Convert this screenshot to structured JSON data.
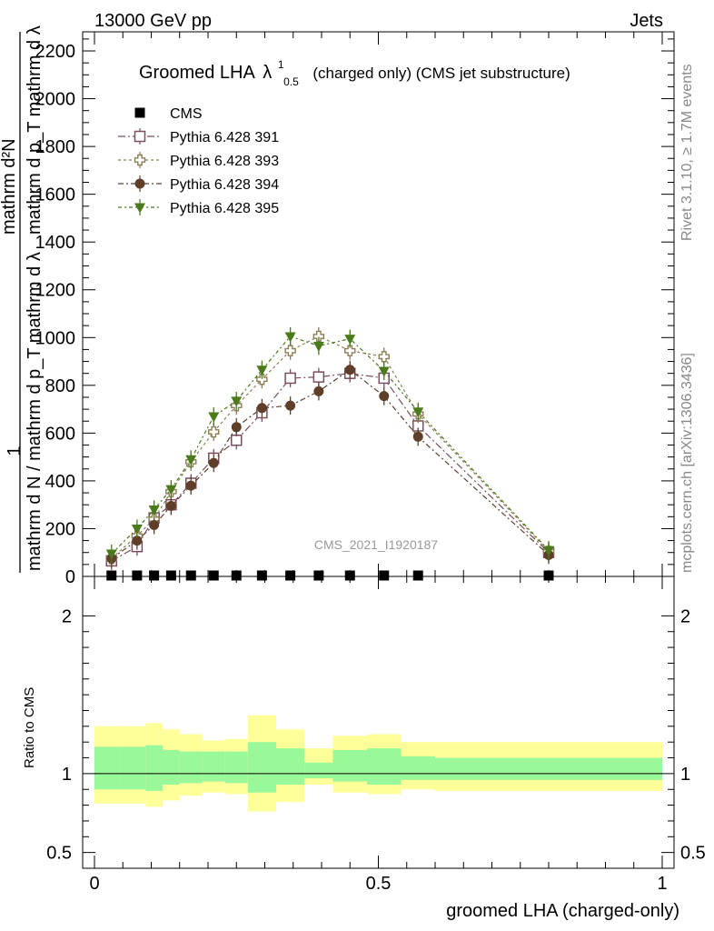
{
  "header": {
    "left": "13000 GeV pp",
    "right": "Jets"
  },
  "side_labels": {
    "rivet": "Rivet 3.1.10, ≥ 1.7M events",
    "mcplots": "mcplots.cern.ch [arXiv:1306.3436]"
  },
  "watermark": "CMS_2021_I1920187",
  "colors": {
    "cms": "#000000",
    "p391": "#7a4f5e",
    "p393": "#8c7d55",
    "p394": "#603f2a",
    "p395": "#4a7a1a",
    "band_inner": "#99f899",
    "band_outer": "#ffff99"
  },
  "chart_data": [
    {
      "type": "line",
      "title_main": "Groomed LHA",
      "title_lambda": "λ",
      "title_sup": "1",
      "title_sub": "0.5",
      "title_rest": "(charged only) (CMS jet substructure)",
      "ylabel_top": "1",
      "ylabel_bottom": "mathrm d N / mathrm d p_T mathrm d λ",
      "ylabel_num": "mathrm d²N",
      "ylabel_den": "mathrm d p_T mathrm d λ",
      "xlim": [
        0,
        1
      ],
      "ylim": [
        0,
        2280
      ],
      "yticks": [
        0,
        200,
        400,
        600,
        800,
        1000,
        1200,
        1400,
        1600,
        1800,
        2000,
        2200
      ],
      "legend_position": "top-left",
      "x": [
        0.03,
        0.075,
        0.105,
        0.135,
        0.17,
        0.21,
        0.25,
        0.295,
        0.345,
        0.395,
        0.45,
        0.51,
        0.57,
        0.8
      ],
      "series": [
        {
          "name": "CMS",
          "marker": "square-filled",
          "values": [
            2,
            2,
            2,
            2,
            2,
            2,
            2,
            2,
            2,
            2,
            2,
            2,
            2,
            2
          ]
        },
        {
          "name": "Pythia 6.428 391",
          "marker": "square-open",
          "values": [
            65,
            125,
            245,
            300,
            390,
            495,
            570,
            685,
            830,
            835,
            850,
            830,
            630,
            100
          ]
        },
        {
          "name": "Pythia 6.428 393",
          "marker": "cross-open",
          "values": [
            75,
            170,
            240,
            355,
            480,
            605,
            715,
            825,
            945,
            1005,
            945,
            920,
            680,
            105
          ]
        },
        {
          "name": "Pythia 6.428 394",
          "marker": "circle-filled",
          "values": [
            75,
            150,
            215,
            295,
            380,
            475,
            625,
            705,
            715,
            775,
            865,
            755,
            585,
            90
          ]
        },
        {
          "name": "Pythia 6.428 395",
          "marker": "triangle-down-filled",
          "values": [
            95,
            200,
            280,
            365,
            490,
            670,
            735,
            865,
            1005,
            965,
            995,
            860,
            690,
            110
          ]
        }
      ]
    },
    {
      "type": "area",
      "ylabel": "Ratio to CMS",
      "xlabel": "groomed LHA (charged-only)",
      "xlim": [
        0,
        1
      ],
      "ylim": [
        0.4,
        2.25
      ],
      "yticks": [
        0.5,
        1,
        2
      ],
      "ytick_labels": [
        "0.5",
        "1",
        "2"
      ],
      "xticks": [
        0,
        0.5,
        1
      ],
      "xtick_labels": [
        "0",
        "0.5",
        "1"
      ],
      "bin_edges": [
        0,
        0.045,
        0.09,
        0.12,
        0.15,
        0.19,
        0.23,
        0.27,
        0.32,
        0.37,
        0.42,
        0.48,
        0.54,
        0.6,
        1.0
      ],
      "inner_band": [
        [
          0.9,
          1.17
        ],
        [
          0.9,
          1.17
        ],
        [
          0.89,
          1.18
        ],
        [
          0.93,
          1.15
        ],
        [
          0.94,
          1.14
        ],
        [
          0.95,
          1.14
        ],
        [
          0.94,
          1.14
        ],
        [
          0.88,
          1.2
        ],
        [
          0.93,
          1.16
        ],
        [
          0.97,
          1.07
        ],
        [
          0.95,
          1.15
        ],
        [
          0.93,
          1.16
        ],
        [
          0.96,
          1.11
        ],
        [
          0.96,
          1.1
        ]
      ],
      "outer_band": [
        [
          0.81,
          1.3
        ],
        [
          0.81,
          1.3
        ],
        [
          0.79,
          1.32
        ],
        [
          0.83,
          1.28
        ],
        [
          0.86,
          1.25
        ],
        [
          0.88,
          1.21
        ],
        [
          0.87,
          1.22
        ],
        [
          0.76,
          1.37
        ],
        [
          0.82,
          1.28
        ],
        [
          0.93,
          1.16
        ],
        [
          0.88,
          1.24
        ],
        [
          0.87,
          1.25
        ],
        [
          0.9,
          1.2
        ],
        [
          0.89,
          1.2
        ]
      ],
      "reference_line": 1.0
    }
  ]
}
